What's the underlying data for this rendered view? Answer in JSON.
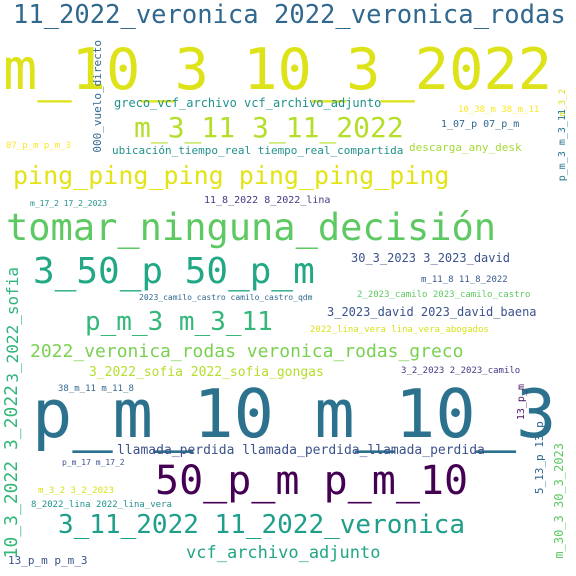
{
  "words": [
    {
      "text": "11_2022_veronica 2022_veronica_rodas",
      "color": "#31688e"
    },
    {
      "text": "m_10_3 10_3_2022",
      "color": "#dde318"
    },
    {
      "text": "greco_vcf_archivo vcf_archivo_adjunto",
      "color": "#21918c"
    },
    {
      "text": "10_38_m 38_m_11",
      "color": "#fde725"
    },
    {
      "text": "m_3_2",
      "color": "#d8e219"
    },
    {
      "text": "m_3_11 3_11_2022",
      "color": "#b5de2b"
    },
    {
      "text": "1_07_p 07_p_m",
      "color": "#31688e"
    },
    {
      "text": "000_vuelo_directo",
      "color": "#31688e"
    },
    {
      "text": "07_p_m p_m_3",
      "color": "#fde725"
    },
    {
      "text": "ubicación_tiempo_real tiempo_real_compartida",
      "color": "#21918c"
    },
    {
      "text": "descarga_any_desk",
      "color": "#a5db36"
    },
    {
      "text": "p_m_3 m_3_11",
      "color": "#2a788e"
    },
    {
      "text": "ping_ping_ping ping_ping_ping",
      "color": "#e2e418"
    },
    {
      "text": "m_17_2 17_2_2023",
      "color": "#21918c"
    },
    {
      "text": "11_8_2022 8_2022_lina",
      "color": "#443a83"
    },
    {
      "text": "tomar_ninguna_decisión",
      "color": "#5ec962"
    },
    {
      "text": "3_50_p 50_p_m",
      "color": "#22a884"
    },
    {
      "text": "30_3_2023 3_2023_david",
      "color": "#3b528b"
    },
    {
      "text": "m_11_8 11_8_2022",
      "color": "#38598c"
    },
    {
      "text": "2023_camilo_castro camilo_castro_qdm",
      "color": "#31688e"
    },
    {
      "text": "2_2023_camilo 2023_camilo_castro",
      "color": "#5ec962"
    },
    {
      "text": "3_2023_david 2023_david_baena",
      "color": "#3b528b"
    },
    {
      "text": "p_m_3 m_3_11",
      "color": "#35b779"
    },
    {
      "text": "2022_lina_vera lina_vera_abogados",
      "color": "#d8e219"
    },
    {
      "text": "3_2022_sofia",
      "color": "#2fb47c"
    },
    {
      "text": "2022_veronica_rodas veronica_rodas_greco",
      "color": "#7ad151"
    },
    {
      "text": "3_2022_sofia 2022_sofia_gongas",
      "color": "#b5de2b"
    },
    {
      "text": "3_2_2023 2_2023_camilo",
      "color": "#443983"
    },
    {
      "text": "38_m_11 m_11_8",
      "color": "#31688e"
    },
    {
      "text": "p_m_10 m_10_3",
      "color": "#2c728e"
    },
    {
      "text": "13_p_m",
      "color": "#48186a"
    },
    {
      "text": "10_3_2022 3_2022",
      "color": "#35b779"
    },
    {
      "text": "llamada_perdida llamada_perdida_llamada_perdida",
      "color": "#3b528b"
    },
    {
      "text": "p_m_17 m_17_2",
      "color": "#3b528b"
    },
    {
      "text": "50_p_m p_m_10",
      "color": "#440154"
    },
    {
      "text": "5_13_p 13_p_m",
      "color": "#31688e"
    },
    {
      "text": "m_30_3 30_3_2023",
      "color": "#5ec962"
    },
    {
      "text": "m_3_2 3_2_2023",
      "color": "#d8e219"
    },
    {
      "text": "8_2022_lina 2022_lina_vera",
      "color": "#21918c"
    },
    {
      "text": "3_11_2022 11_2022_veronica",
      "color": "#1f9e89"
    },
    {
      "text": "vcf_archivo_adjunto",
      "color": "#21a585"
    },
    {
      "text": "13_p_m p_m_3",
      "color": "#3b528b"
    }
  ]
}
